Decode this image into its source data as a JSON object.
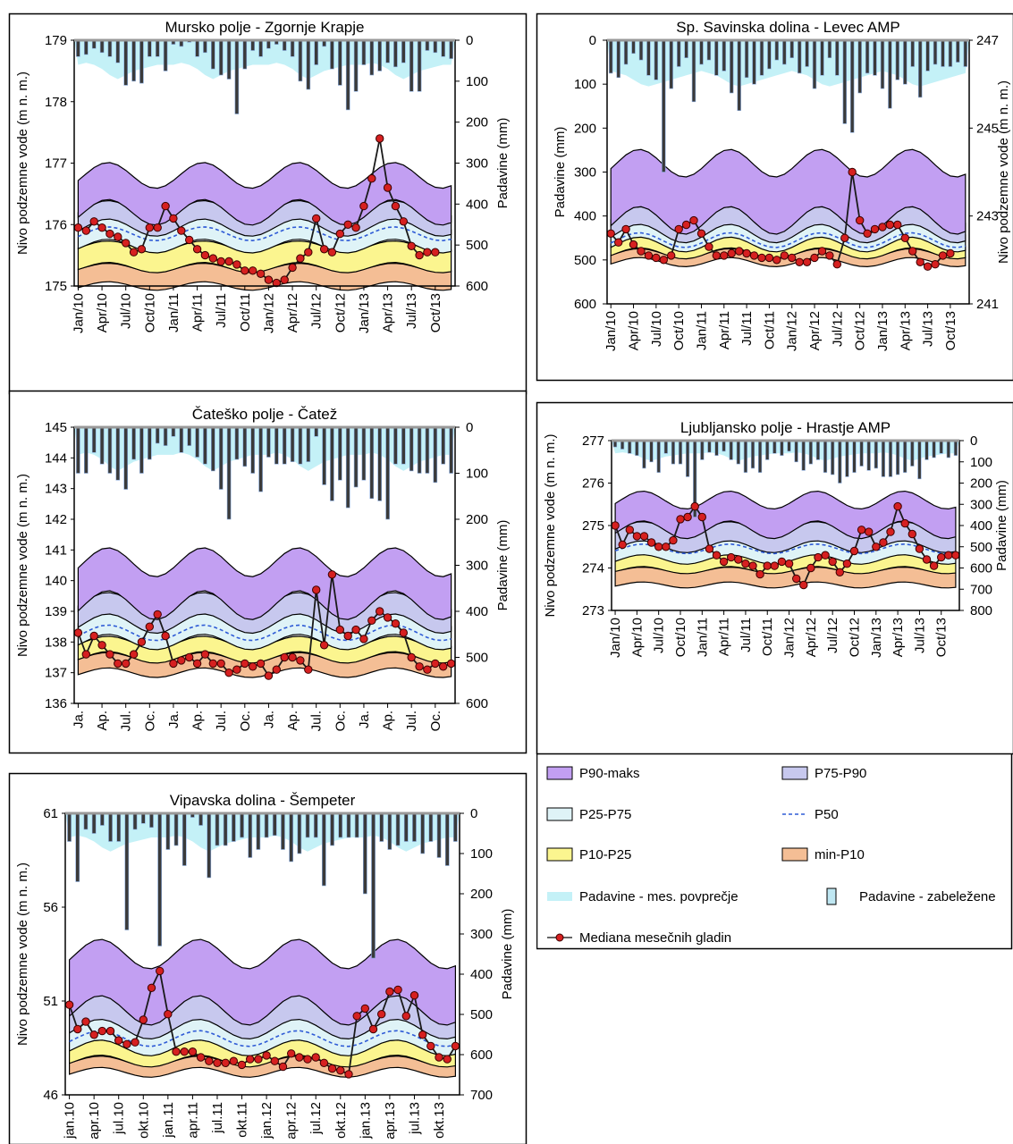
{
  "legend_items": [
    {
      "key": "p90max",
      "label": "P90-maks",
      "color": "#c29ff2"
    },
    {
      "key": "p75p90",
      "label": "P75-P90",
      "color": "#c7c8ee"
    },
    {
      "key": "p25p75",
      "label": "P25-P75",
      "color": "#dff3f7"
    },
    {
      "key": "p50",
      "label": "P50",
      "color": "#2f5bd6"
    },
    {
      "key": "p10p25",
      "label": "P10-P25",
      "color": "#fbf58f"
    },
    {
      "key": "minp10",
      "label": "min-P10",
      "color": "#f4be95"
    },
    {
      "key": "rain_avg",
      "label": "Padavine - mes. povprečje",
      "color": "#c4f1f7"
    },
    {
      "key": "rain_rec",
      "label": "Padavine - zabeležene",
      "color": "#bfe7f2"
    },
    {
      "key": "median",
      "label": "Mediana mesečnih gladin",
      "color": "#d62020"
    }
  ],
  "chart_data": [
    {
      "id": "mursko",
      "type": "line",
      "title": "Mursko polje - Zgornje Krapje",
      "ylabel_left": "Nivo podzemne vode (m n. m.)",
      "ylabel_right": "Padavine (mm)",
      "left_ticks": [
        179,
        178,
        177,
        176,
        175
      ],
      "right_ticks": [
        0,
        100,
        200,
        300,
        400,
        500,
        600
      ],
      "x_ticks": [
        "Jan/10",
        "Apr/10",
        "Jul/10",
        "Oct/10",
        "Jan/11",
        "Apr/11",
        "Jul/11",
        "Oct/11",
        "Jan/12",
        "Apr/12",
        "Jul/12",
        "Oct/12",
        "Jan/13",
        "Apr/13",
        "Jul/13",
        "Oct/13"
      ],
      "ylim_left": [
        175,
        179
      ],
      "ylim_right": [
        0,
        600
      ],
      "bands": {
        "p90max": [
          176.2,
          176.8
        ],
        "p75p90": [
          175.95,
          176.25
        ],
        "p25p75": [
          175.65,
          176.0
        ],
        "p50": 175.85,
        "p10p25": [
          175.3,
          175.65
        ],
        "minp10": [
          175.0,
          175.3
        ]
      },
      "median_levels": [
        175.95,
        175.9,
        176.05,
        175.95,
        175.85,
        175.8,
        175.7,
        175.55,
        175.6,
        175.95,
        175.95,
        176.3,
        176.1,
        175.9,
        175.75,
        175.6,
        175.5,
        175.45,
        175.4,
        175.4,
        175.35,
        175.25,
        175.25,
        175.2,
        175.1,
        175.05,
        175.1,
        175.3,
        175.45,
        175.55,
        176.1,
        175.6,
        175.55,
        175.85,
        176.0,
        175.95,
        176.3,
        176.75,
        177.4,
        176.6,
        176.3,
        176.05,
        175.65,
        175.5,
        175.55,
        175.55
      ],
      "rain": [
        40,
        35,
        20,
        30,
        40,
        55,
        110,
        100,
        105,
        40,
        40,
        75,
        10,
        15,
        5,
        40,
        30,
        70,
        85,
        95,
        180,
        70,
        25,
        40,
        20,
        10,
        25,
        40,
        100,
        120,
        60,
        15,
        70,
        110,
        170,
        125,
        60,
        85,
        75,
        55,
        65,
        55,
        125,
        125,
        25,
        30,
        40,
        45
      ],
      "rain_avg": [
        60,
        55,
        60,
        70,
        85,
        95,
        85,
        75,
        70,
        65,
        60,
        60
      ]
    },
    {
      "id": "savinja",
      "type": "line",
      "title": "Sp. Savinska dolina - Levec AMP",
      "ylabel_left": "Padavine (mm)",
      "ylabel_right": "Nivo podzemne vode (m n. m.)",
      "left_ticks": [
        0,
        100,
        200,
        300,
        400,
        500,
        600
      ],
      "right_ticks": [
        247,
        245,
        243,
        241
      ],
      "x_ticks": [
        "Jan/10",
        "Apr/10",
        "Jul/10",
        "Oct/10",
        "Jan/11",
        "Apr/11",
        "Jul/11",
        "Oct/11",
        "Jan/12",
        "Apr/12",
        "Jul/12",
        "Oct/12",
        "Jan/13",
        "Apr/13",
        "Jul/13",
        "Oct/13"
      ],
      "ylim_level": [
        241,
        247
      ],
      "ylim_rain": [
        0,
        600
      ],
      "bands": {
        "p90max": [
          242.9,
          244.2
        ],
        "p75p90": [
          242.6,
          243.0
        ],
        "p25p75": [
          242.35,
          242.7
        ],
        "p50": 242.45,
        "p10p25": [
          242.15,
          242.4
        ],
        "minp10": [
          241.95,
          242.15
        ]
      },
      "median_levels": [
        242.6,
        242.4,
        242.7,
        242.35,
        242.2,
        242.1,
        242.05,
        242.0,
        242.1,
        242.7,
        242.8,
        242.9,
        242.6,
        242.3,
        242.1,
        242.1,
        242.15,
        242.2,
        242.15,
        242.1,
        242.05,
        242.05,
        242.0,
        242.1,
        242.05,
        241.95,
        241.95,
        242.05,
        242.2,
        242.1,
        241.9,
        242.5,
        244.0,
        242.9,
        242.6,
        242.7,
        242.75,
        242.8,
        242.8,
        242.5,
        242.2,
        241.95,
        241.85,
        241.9,
        242.1,
        242.15
      ],
      "rain": [
        75,
        85,
        55,
        30,
        45,
        80,
        90,
        300,
        110,
        60,
        40,
        140,
        55,
        45,
        80,
        70,
        120,
        160,
        85,
        100,
        80,
        65,
        45,
        55,
        40,
        75,
        60,
        110,
        80,
        40,
        80,
        190,
        210,
        120,
        75,
        80,
        110,
        155,
        90,
        100,
        60,
        130,
        70,
        55,
        60,
        60,
        50,
        60
      ],
      "rain_avg": [
        70,
        75,
        80,
        90,
        100,
        105,
        100,
        95,
        90,
        85,
        80,
        75
      ]
    },
    {
      "id": "catez",
      "type": "line",
      "title": "Čateško polje - Čatež",
      "ylabel_left": "Nivo podzemne vode (m n. m.)",
      "ylabel_right": "Padavine (mm)",
      "left_ticks": [
        145,
        144,
        143,
        142,
        141,
        140,
        139,
        138,
        137,
        136
      ],
      "right_ticks": [
        0,
        100,
        200,
        300,
        400,
        500,
        600
      ],
      "x_ticks": [
        "Ja.",
        "Ap.",
        "Jul.",
        "Oc.",
        "Ja.",
        "Ap.",
        "Jul.",
        "Oc.",
        "Ja.",
        "Ap.",
        "Jul.",
        "Oc.",
        "Ja.",
        "Ap.",
        "Jul.",
        "Oc."
      ],
      "ylim_left": [
        136,
        145
      ],
      "ylim_right": [
        0,
        600
      ],
      "bands": {
        "p90max": [
          139.2,
          140.6
        ],
        "p75p90": [
          138.6,
          139.3
        ],
        "p25p75": [
          138.0,
          138.7
        ],
        "p50": 138.3,
        "p10p25": [
          137.5,
          138.0
        ],
        "minp10": [
          137.0,
          137.5
        ]
      },
      "median_levels": [
        138.3,
        137.6,
        138.2,
        137.9,
        137.6,
        137.3,
        137.3,
        137.6,
        138.0,
        138.5,
        138.9,
        138.2,
        137.3,
        137.4,
        137.5,
        137.3,
        137.6,
        137.3,
        137.3,
        137.0,
        137.1,
        137.3,
        137.2,
        137.3,
        136.9,
        137.1,
        137.5,
        137.5,
        137.4,
        137.1,
        139.7,
        137.9,
        140.2,
        138.4,
        138.2,
        138.4,
        138.1,
        138.7,
        139.0,
        138.8,
        138.6,
        138.3,
        137.5,
        137.2,
        137.1,
        137.3,
        137.2,
        137.3
      ],
      "rain": [
        100,
        100,
        55,
        80,
        100,
        115,
        135,
        70,
        100,
        70,
        35,
        40,
        20,
        55,
        40,
        65,
        80,
        95,
        135,
        200,
        70,
        85,
        100,
        140,
        65,
        80,
        80,
        75,
        80,
        75,
        20,
        125,
        160,
        115,
        175,
        130,
        115,
        155,
        160,
        200,
        80,
        80,
        95,
        100,
        100,
        120,
        80,
        100
      ],
      "rain_avg": [
        60,
        55,
        60,
        70,
        85,
        95,
        85,
        75,
        70,
        65,
        60,
        60
      ]
    },
    {
      "id": "hrastje",
      "type": "line",
      "title": "Ljubljansko polje - Hrastje AMP",
      "ylabel_left": "Nivo podzemne vode (m n. m.)",
      "ylabel_right": "Padavine (mm)",
      "left_ticks": [
        277,
        276,
        275,
        274,
        273
      ],
      "right_ticks": [
        0,
        100,
        200,
        300,
        400,
        500,
        600,
        700,
        800
      ],
      "x_ticks": [
        "Jan/10",
        "Apr/10",
        "Jul/10",
        "Oct/10",
        "Jan/11",
        "Apr/11",
        "Jul/11",
        "Oct/11",
        "Jan/12",
        "Apr/12",
        "Jul/12",
        "Oct/12",
        "Jan/13",
        "Apr/13",
        "Jul/13",
        "Oct/13"
      ],
      "ylim_left": [
        273,
        277
      ],
      "ylim_right": [
        0,
        800
      ],
      "bands": {
        "p90max": [
          274.9,
          275.6
        ],
        "p75p90": [
          274.5,
          274.95
        ],
        "p25p75": [
          274.2,
          274.6
        ],
        "p50": 274.45,
        "p10p25": [
          273.95,
          274.25
        ],
        "minp10": [
          273.6,
          273.95
        ]
      },
      "median_levels": [
        275.0,
        274.55,
        274.9,
        274.75,
        274.75,
        274.6,
        274.5,
        274.5,
        274.65,
        275.15,
        275.2,
        275.45,
        275.2,
        274.45,
        274.3,
        274.15,
        274.25,
        274.2,
        274.1,
        274.05,
        273.85,
        274.05,
        274.05,
        274.15,
        274.1,
        273.75,
        273.6,
        274.0,
        274.25,
        274.3,
        274.15,
        273.9,
        274.1,
        274.4,
        274.9,
        274.85,
        274.5,
        274.6,
        274.85,
        275.45,
        275.05,
        274.8,
        274.45,
        274.2,
        274.05,
        274.25,
        274.3,
        274.3
      ],
      "rain": [
        30,
        40,
        60,
        70,
        130,
        100,
        150,
        60,
        110,
        110,
        170,
        360,
        90,
        55,
        70,
        50,
        90,
        110,
        150,
        130,
        150,
        90,
        60,
        70,
        50,
        100,
        140,
        110,
        90,
        150,
        160,
        200,
        170,
        150,
        120,
        140,
        130,
        170,
        170,
        160,
        150,
        120,
        180,
        90,
        80,
        60,
        80,
        70
      ],
      "rain_avg": [
        60,
        55,
        60,
        70,
        85,
        95,
        85,
        75,
        70,
        65,
        60,
        60
      ]
    },
    {
      "id": "sempeter",
      "type": "line",
      "title": "Vipavska dolina - Šempeter",
      "ylabel_left": "Nivo podzemne vode (m n. m.)",
      "ylabel_right": "Padavine (mm)",
      "left_ticks": [
        61,
        56,
        51,
        46
      ],
      "right_ticks": [
        0,
        100,
        200,
        300,
        400,
        500,
        600,
        700
      ],
      "x_ticks": [
        "jan.10",
        "apr.10",
        "jul.10",
        "okt.10",
        "jan.11",
        "apr.11",
        "jul.11",
        "okt.11",
        "jan.12",
        "apr.12",
        "jul.12",
        "okt.12",
        "jan.13",
        "apr.13",
        "jul.13",
        "okt.13"
      ],
      "ylim_left": [
        46,
        61
      ],
      "ylim_right": [
        0,
        700
      ],
      "bands": {
        "p90max": [
          50.5,
          53.5
        ],
        "p75p90": [
          49.5,
          51.0
        ],
        "p25p75": [
          48.5,
          49.8
        ],
        "p50": 49.0,
        "p10p25": [
          47.8,
          48.6
        ],
        "minp10": [
          47.2,
          47.8
        ]
      },
      "median_levels": [
        50.8,
        49.5,
        49.9,
        49.2,
        49.4,
        49.4,
        48.9,
        48.7,
        48.8,
        50.0,
        51.7,
        52.6,
        50.3,
        48.3,
        48.3,
        48.3,
        48.0,
        47.8,
        47.7,
        47.7,
        47.8,
        47.6,
        47.9,
        47.9,
        48.1,
        47.8,
        47.5,
        48.2,
        48.0,
        47.9,
        48.0,
        47.7,
        47.4,
        47.3,
        47.1,
        50.2,
        50.6,
        49.5,
        50.3,
        51.5,
        51.6,
        50.2,
        51.3,
        49.2,
        48.6,
        48.0,
        47.9,
        48.6
      ],
      "rain": [
        70,
        170,
        40,
        50,
        30,
        70,
        70,
        290,
        40,
        25,
        35,
        330,
        90,
        80,
        130,
        10,
        30,
        160,
        80,
        80,
        70,
        60,
        110,
        90,
        60,
        55,
        90,
        120,
        100,
        60,
        60,
        180,
        80,
        60,
        60,
        60,
        200,
        360,
        70,
        90,
        80,
        70,
        70,
        100,
        70,
        110,
        130,
        70
      ],
      "rain_avg": [
        60,
        55,
        60,
        70,
        85,
        95,
        85,
        75,
        70,
        65,
        60,
        60
      ]
    }
  ]
}
